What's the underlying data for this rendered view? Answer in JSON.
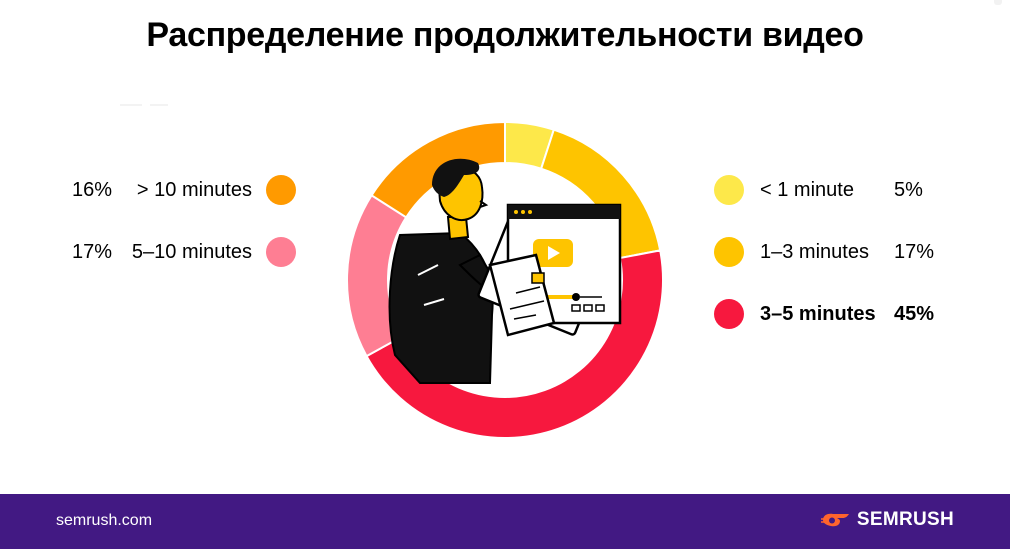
{
  "title": "Распределение продолжительности видео",
  "footer": {
    "site": "semrush.com",
    "brand": "SEMRUSH"
  },
  "chart_data": {
    "type": "pie",
    "title": "Распределение продолжительности видео",
    "donut": true,
    "slices": [
      {
        "label": "< 1 minute",
        "value": 5,
        "display": "5%",
        "color": "#fde84a",
        "bold": false
      },
      {
        "label": "1–3 minutes",
        "value": 17,
        "display": "17%",
        "color": "#fec400",
        "bold": false
      },
      {
        "label": "3–5 minutes",
        "value": 45,
        "display": "45%",
        "color": "#f7183e",
        "bold": true
      },
      {
        "label": "5–10 minutes",
        "value": 17,
        "display": "17%",
        "color": "#fe7e93",
        "bold": false
      },
      {
        "label": "> 10 minutes",
        "value": 16,
        "display": "16%",
        "color": "#ff9a00",
        "bold": false
      }
    ],
    "legend_left": [
      4,
      3
    ],
    "legend_right": [
      0,
      1,
      2
    ]
  }
}
